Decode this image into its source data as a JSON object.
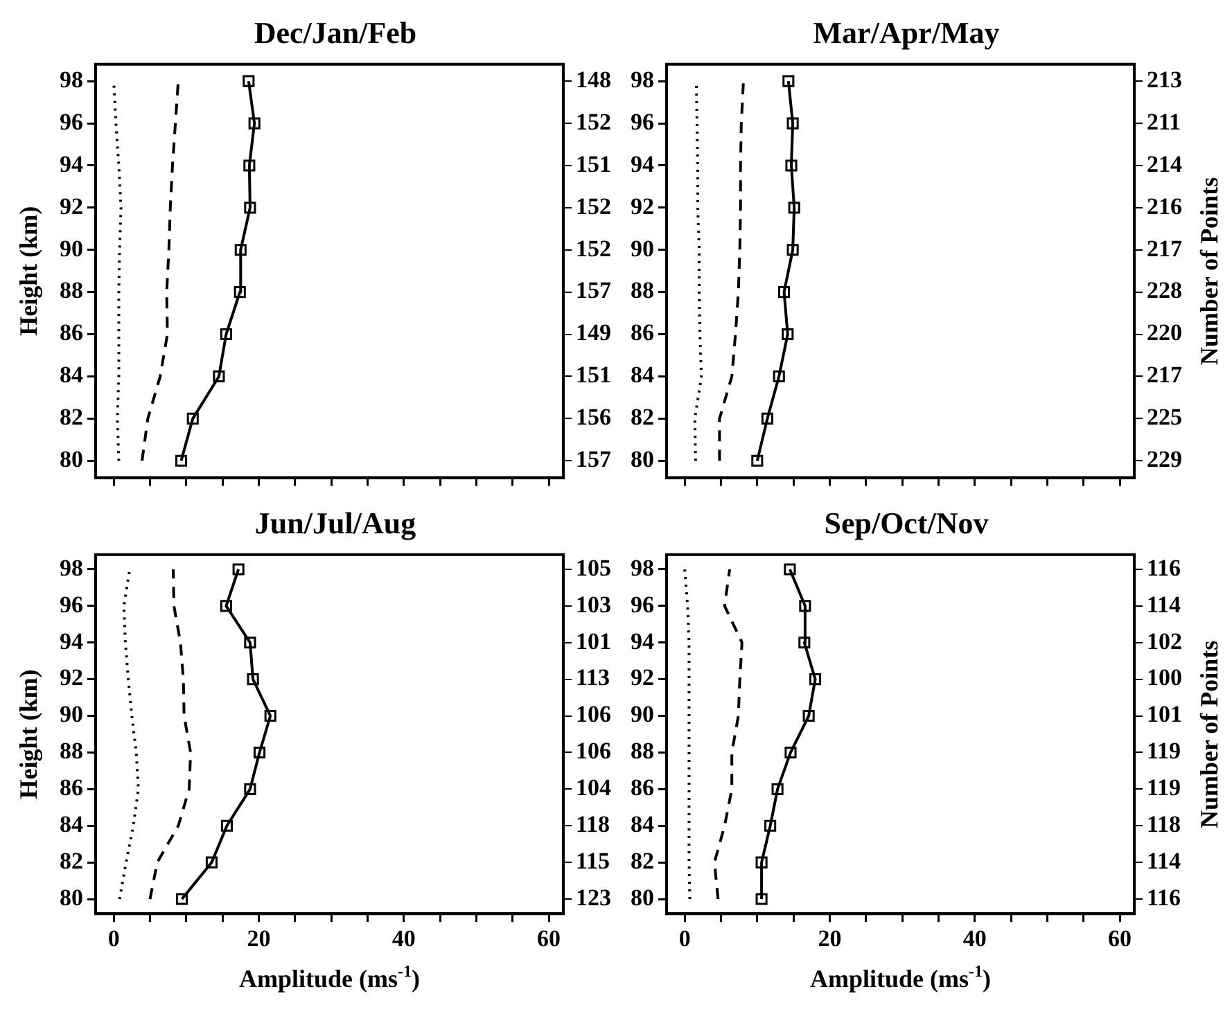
{
  "chart_data": [
    {
      "type": "line",
      "title": "Dec/Jan/Feb",
      "ylabel": "Height (km)",
      "xlim": [
        -2.5,
        62
      ],
      "xticks": [
        0,
        {
          "value": 5,
          "label": null
        },
        {
          "value": 10,
          "label": null
        },
        {
          "value": 15,
          "label": null
        },
        {
          "value": 20,
          "label": null
        },
        {
          "value": 25,
          "label": null
        },
        {
          "value": 30,
          "label": null
        },
        {
          "value": 35,
          "label": null
        },
        {
          "value": 40,
          "label": null
        },
        {
          "value": 45,
          "label": null
        },
        {
          "value": 50,
          "label": null
        },
        {
          "value": 55,
          "label": null
        },
        {
          "value": 60,
          "label": null
        }
      ],
      "ylim": [
        79.2,
        98.8
      ],
      "yticks": [
        80,
        82,
        84,
        86,
        88,
        90,
        92,
        94,
        96,
        98
      ],
      "y2_categories": [
        "148",
        "152",
        "151",
        "152",
        "152",
        "157",
        "149",
        "151",
        "156",
        "157"
      ],
      "tick_labels": "y",
      "series": [
        {
          "color": "#000000",
          "marker": "square",
          "line_style": "solid",
          "x": [
            9.3,
            10.9,
            14.5,
            15.5,
            17.4,
            17.5,
            18.8,
            18.7,
            19.4,
            18.6
          ],
          "values": [
            80,
            82,
            84,
            86,
            88,
            90,
            92,
            94,
            96,
            98
          ]
        },
        {
          "color": "#000000",
          "marker": "none",
          "line_style": "dashed",
          "x": [
            3.9,
            4.7,
            6.4,
            7.4,
            7.3,
            7.6,
            7.8,
            8.1,
            8.5,
            8.9
          ],
          "values": [
            80,
            82,
            84,
            86,
            88,
            90,
            92,
            94,
            96,
            98
          ]
        },
        {
          "color": "#000000",
          "marker": "none",
          "line_style": "dotted",
          "x": [
            0.7,
            0.5,
            0.7,
            0.7,
            0.7,
            0.8,
            1.0,
            0.7,
            0.3,
            0
          ],
          "values": [
            80,
            82,
            84,
            86,
            88,
            90,
            92,
            94,
            96,
            98
          ]
        }
      ]
    },
    {
      "type": "line",
      "title": "Mar/Apr/May",
      "y2label": "Number of Points",
      "xlim": [
        -2.5,
        62
      ],
      "xticks": [
        0,
        {
          "value": 5,
          "label": null
        },
        {
          "value": 10,
          "label": null
        },
        {
          "value": 15,
          "label": null
        },
        {
          "value": 20,
          "label": null
        },
        {
          "value": 25,
          "label": null
        },
        {
          "value": 30,
          "label": null
        },
        {
          "value": 35,
          "label": null
        },
        {
          "value": 40,
          "label": null
        },
        {
          "value": 45,
          "label": null
        },
        {
          "value": 50,
          "label": null
        },
        {
          "value": 55,
          "label": null
        },
        {
          "value": 60,
          "label": null
        }
      ],
      "ylim": [
        79.2,
        98.8
      ],
      "yticks": [
        80,
        82,
        84,
        86,
        88,
        90,
        92,
        94,
        96,
        98
      ],
      "y2_categories": [
        "213",
        "211",
        "214",
        "216",
        "217",
        "228",
        "220",
        "217",
        "225",
        "229"
      ],
      "tick_labels": "y",
      "series": [
        {
          "color": "#000000",
          "marker": "square",
          "line_style": "solid",
          "x": [
            10.0,
            11.4,
            13.0,
            14.2,
            13.7,
            14.9,
            15.1,
            14.7,
            14.9,
            14.3
          ],
          "values": [
            80,
            82,
            84,
            86,
            88,
            90,
            92,
            94,
            96,
            98
          ]
        },
        {
          "color": "#000000",
          "marker": "none",
          "line_style": "dashed",
          "x": [
            4.8,
            4.8,
            6.5,
            7.0,
            7.4,
            7.6,
            7.7,
            7.7,
            7.8,
            8.1
          ],
          "values": [
            80,
            82,
            84,
            86,
            88,
            90,
            92,
            94,
            96,
            98
          ]
        },
        {
          "color": "#000000",
          "marker": "none",
          "line_style": "dotted",
          "x": [
            1.5,
            1.4,
            2.3,
            2.1,
            2.0,
            2.0,
            1.8,
            1.8,
            1.7,
            1.6
          ],
          "values": [
            80,
            82,
            84,
            86,
            88,
            90,
            92,
            94,
            96,
            98
          ]
        }
      ]
    },
    {
      "type": "line",
      "title": "Jun/Jul/Aug",
      "ylabel": "Height (km)",
      "xlabel": "Amplitude (ms$^{-1}$)",
      "xlim": [
        -2.5,
        62
      ],
      "xticks": [
        0,
        {
          "value": 5,
          "label": null
        },
        {
          "value": 10,
          "label": null
        },
        {
          "value": 15,
          "label": null
        },
        20,
        {
          "value": 25,
          "label": null
        },
        {
          "value": 30,
          "label": null
        },
        {
          "value": 35,
          "label": null
        },
        40,
        {
          "value": 45,
          "label": null
        },
        {
          "value": 50,
          "label": null
        },
        {
          "value": 55,
          "label": null
        },
        60
      ],
      "ylim": [
        79.2,
        98.8
      ],
      "yticks": [
        80,
        82,
        84,
        86,
        88,
        90,
        92,
        94,
        96,
        98
      ],
      "y2_categories": [
        "105",
        "103",
        "101",
        "113",
        "106",
        "106",
        "104",
        "118",
        "115",
        "123"
      ],
      "series": [
        {
          "color": "#000000",
          "marker": "square",
          "line_style": "solid",
          "x": [
            9.4,
            13.5,
            15.6,
            18.8,
            20.1,
            21.6,
            19.2,
            18.8,
            15.5,
            17.2
          ],
          "values": [
            80,
            82,
            84,
            86,
            88,
            90,
            92,
            94,
            96,
            98
          ]
        },
        {
          "color": "#000000",
          "marker": "none",
          "line_style": "dashed",
          "x": [
            5.0,
            6.0,
            8.9,
            10.4,
            10.6,
            9.7,
            9.6,
            9.2,
            8.3,
            8.2
          ],
          "values": [
            80,
            82,
            84,
            86,
            88,
            90,
            92,
            94,
            96,
            98
          ]
        },
        {
          "color": "#000000",
          "marker": "none",
          "line_style": "dotted",
          "x": [
            0.8,
            1.7,
            2.7,
            3.4,
            3.1,
            2.5,
            2.0,
            1.6,
            1.4,
            2.2
          ],
          "values": [
            80,
            82,
            84,
            86,
            88,
            90,
            92,
            94,
            96,
            98
          ]
        }
      ]
    },
    {
      "type": "line",
      "title": "Sep/Oct/Nov",
      "xlabel": "Amplitude (ms$^{-1}$)",
      "y2label": "Number of Points",
      "xlim": [
        -2.5,
        62
      ],
      "xticks": [
        0,
        {
          "value": 5,
          "label": null
        },
        {
          "value": 10,
          "label": null
        },
        {
          "value": 15,
          "label": null
        },
        20,
        {
          "value": 25,
          "label": null
        },
        {
          "value": 30,
          "label": null
        },
        {
          "value": 35,
          "label": null
        },
        40,
        {
          "value": 45,
          "label": null
        },
        {
          "value": 50,
          "label": null
        },
        {
          "value": 55,
          "label": null
        },
        60
      ],
      "ylim": [
        79.2,
        98.8
      ],
      "yticks": [
        80,
        82,
        84,
        86,
        88,
        90,
        92,
        94,
        96,
        98
      ],
      "y2_categories": [
        "116",
        "114",
        "102",
        "100",
        "101",
        "119",
        "119",
        "118",
        "114",
        "116"
      ],
      "series": [
        {
          "color": "#000000",
          "marker": "square",
          "line_style": "solid",
          "x": [
            10.6,
            10.6,
            11.8,
            12.8,
            14.6,
            17.1,
            18.0,
            16.5,
            16.6,
            14.5
          ],
          "values": [
            80,
            82,
            84,
            86,
            88,
            90,
            92,
            94,
            96,
            98
          ]
        },
        {
          "color": "#000000",
          "marker": "none",
          "line_style": "dashed",
          "x": [
            4.6,
            4.1,
            5.5,
            6.5,
            6.5,
            7.4,
            7.6,
            7.9,
            5.5,
            6.2
          ],
          "values": [
            80,
            82,
            84,
            86,
            88,
            90,
            92,
            94,
            96,
            98
          ]
        },
        {
          "color": "#000000",
          "marker": "none",
          "line_style": "dotted",
          "x": [
            0.7,
            0.6,
            0.6,
            0.6,
            0.6,
            0.6,
            0.6,
            0.6,
            0.4,
            0
          ],
          "values": [
            80,
            82,
            84,
            86,
            88,
            90,
            92,
            94,
            96,
            98
          ]
        }
      ]
    }
  ]
}
